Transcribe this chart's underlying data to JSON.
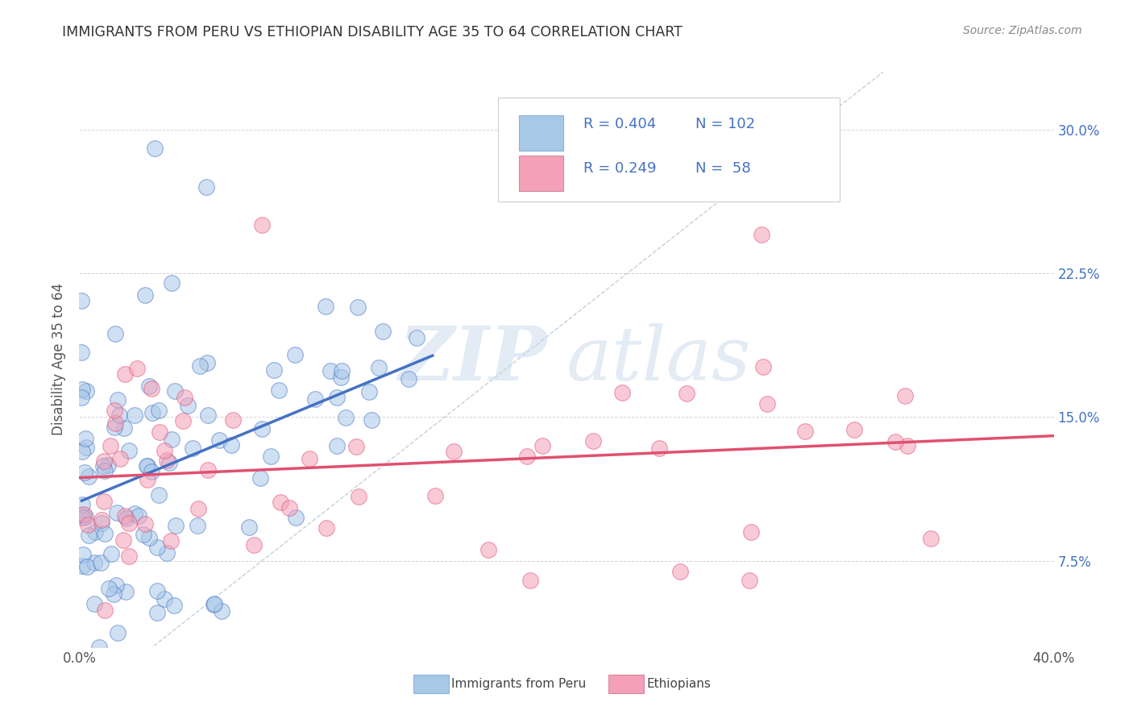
{
  "title": "IMMIGRANTS FROM PERU VS ETHIOPIAN DISABILITY AGE 35 TO 64 CORRELATION CHART",
  "source": "Source: ZipAtlas.com",
  "ylabel": "Disability Age 35 to 64",
  "ytick_labels": [
    "7.5%",
    "15.0%",
    "22.5%",
    "30.0%"
  ],
  "ytick_values": [
    0.075,
    0.15,
    0.225,
    0.3
  ],
  "xlim": [
    0.0,
    0.4
  ],
  "ylim": [
    0.03,
    0.33
  ],
  "legend_peru_r": "0.404",
  "legend_peru_n": "102",
  "legend_eth_r": "0.249",
  "legend_eth_n": "58",
  "color_peru": "#a8c8e8",
  "color_peru_line": "#4472c4",
  "color_eth": "#f4a0b8",
  "color_eth_line": "#e05070",
  "color_diag_line": "#b8c8d8",
  "legend_label_peru": "Immigrants from Peru",
  "legend_label_eth": "Ethiopians",
  "watermark_zip": "ZIP",
  "watermark_atlas": "atlas",
  "seed": 17
}
